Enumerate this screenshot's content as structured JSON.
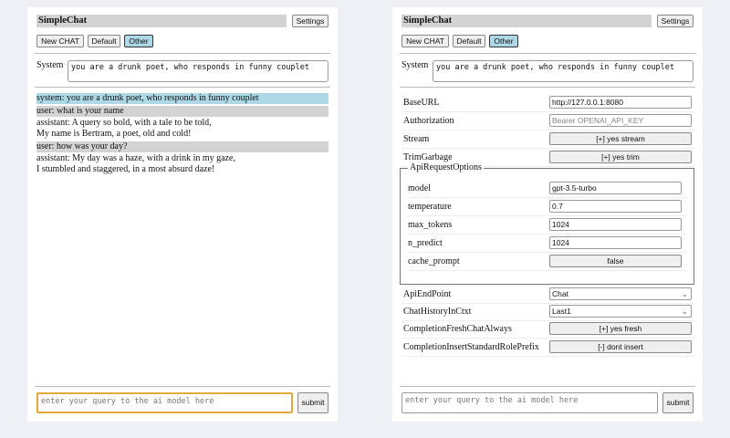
{
  "app": {
    "title": "SimpleChat",
    "settings_label": "Settings",
    "buttons": [
      "New CHAT",
      "Default",
      "Other"
    ],
    "selected": "Other"
  },
  "system": {
    "label": "System",
    "value": "you are a drunk poet, who responds in funny couplet"
  },
  "chat": {
    "messages": [
      {
        "role": "system",
        "lines": [
          "system: you are a drunk poet, who responds in funny couplet"
        ]
      },
      {
        "role": "user",
        "lines": [
          "user: what is your name"
        ]
      },
      {
        "role": "assistant",
        "lines": [
          "assistant: A query so bold, with a tale to be told,",
          "My name is Bertram, a poet, old and cold!"
        ]
      },
      {
        "role": "user",
        "lines": [
          "user: how was your day?"
        ]
      },
      {
        "role": "assistant",
        "lines": [
          "assistant: My day was a haze, with a drink in my gaze,",
          "I stumbled and staggered, in a most absurd daze!"
        ]
      }
    ]
  },
  "query": {
    "placeholder": "enter your query to the ai model here",
    "submit_label": "submit"
  },
  "settings": {
    "base_url": {
      "label": "BaseURL",
      "value": "http://127.0.0.1:8080"
    },
    "authorization": {
      "label": "Authorization",
      "placeholder": "Bearer OPENAI_API_KEY"
    },
    "stream": {
      "label": "Stream",
      "value": "[+] yes stream"
    },
    "trim": {
      "label": "TrimGarbage",
      "value": "[+] yes trim"
    },
    "api_options": {
      "legend": "ApiRequestOptions",
      "model": {
        "label": "model",
        "value": "gpt-3.5-turbo"
      },
      "temperature": {
        "label": "temperature",
        "value": "0.7"
      },
      "max_tokens": {
        "label": "max_tokens",
        "value": "1024"
      },
      "n_predict": {
        "label": "n_predict",
        "value": "1024"
      },
      "cache_prompt": {
        "label": "cache_prompt",
        "value": "false"
      }
    },
    "endpoint": {
      "label": "ApiEndPoint",
      "value": "Chat"
    },
    "history": {
      "label": "ChatHistoryInCtxt",
      "value": "Last1"
    },
    "fresh": {
      "label": "CompletionFreshChatAlways",
      "value": "[+] yes fresh"
    },
    "prefix": {
      "label": "CompletionInsertStandardRolePrefix",
      "value": "[-] dont insert"
    }
  },
  "colors": {
    "system_bg": "#add8e6",
    "user_bg": "#d3d3d3",
    "focus": "#e3a93d",
    "page_bg": "#eef0f6"
  }
}
